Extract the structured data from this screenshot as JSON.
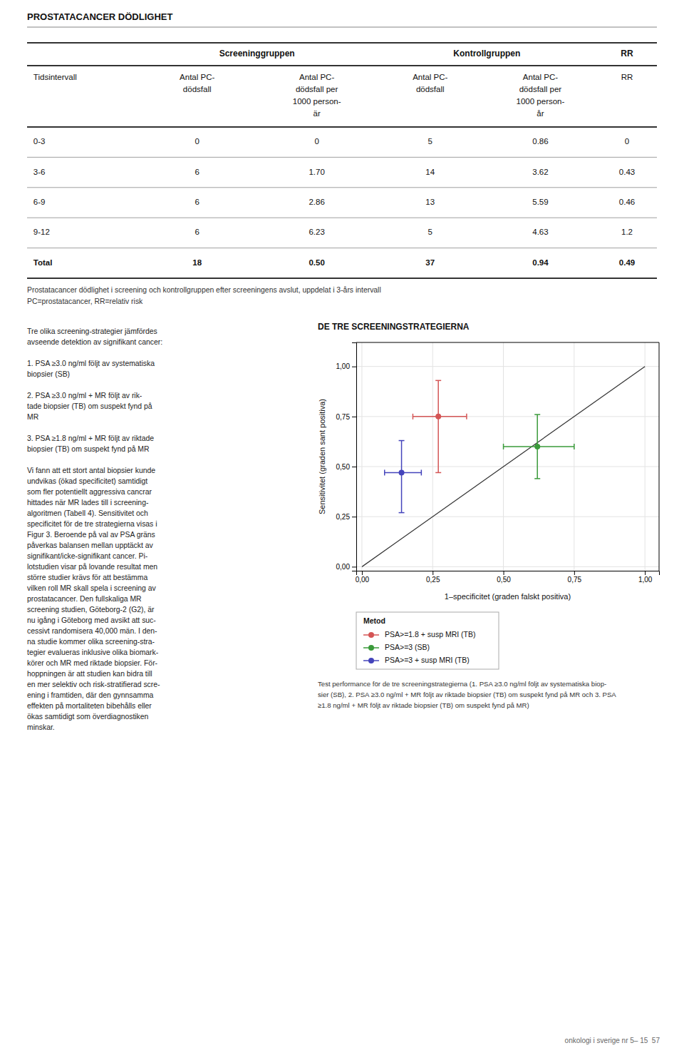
{
  "chart_data": [
    {
      "type": "table",
      "title": "PROSTATACANCER DÖDLIGHET",
      "group_labels": [
        "Screeninggruppen",
        "Kontrollgruppen",
        "RR"
      ],
      "columns": [
        [
          "Tidsintervall"
        ],
        [
          "Antal PC-",
          "dödsfall"
        ],
        [
          "Antal PC-",
          "dödsfall per",
          "1000 person-",
          "är"
        ],
        [
          "Antal PC-",
          "dödsfall"
        ],
        [
          "Antal PC-",
          "dödsfall per",
          "1000 person-",
          "år"
        ],
        [
          "RR"
        ]
      ],
      "rows": [
        [
          "0-3",
          "0",
          "0",
          "5",
          "0.86",
          "0"
        ],
        [
          "3-6",
          "6",
          "1.70",
          "14",
          "3.62",
          "0.43"
        ],
        [
          "6-9",
          "6",
          "2.86",
          "13",
          "5.59",
          "0.46"
        ],
        [
          "9-12",
          "6",
          "6.23",
          "5",
          "4.63",
          "1.2"
        ],
        [
          "Total",
          "18",
          "0.50",
          "37",
          "0.94",
          "0.49"
        ]
      ],
      "caption": [
        "Prostatacancer dödlighet i screening och kontrollgruppen efter screeningens avslut, uppdelat i 3-års intervall",
        "PC=prostatacancer, RR=relativ risk"
      ]
    },
    {
      "type": "scatter",
      "title": "DE TRE SCREENINGSTRATEGIERNA",
      "x_label": "1–specificitet (graden falskt positiva)",
      "y_label": "Sensitivitet (graden sant positiva)",
      "xlim": [
        -0.02,
        1.05
      ],
      "ylim": [
        -0.02,
        1.12
      ],
      "xticks": [
        {
          "value": 0,
          "label": "0,00"
        },
        {
          "value": 0.25,
          "label": "0,25"
        },
        {
          "value": 0.5,
          "label": "0,50"
        },
        {
          "value": 0.75,
          "label": "0,75"
        },
        {
          "value": 1,
          "label": "1,00"
        }
      ],
      "yticks": [
        {
          "value": 0,
          "label": "0,00"
        },
        {
          "value": 0.25,
          "label": "0,25"
        },
        {
          "value": 0.5,
          "label": "0,50"
        },
        {
          "value": 0.75,
          "label": "0,75"
        },
        {
          "value": 1,
          "label": "1,00"
        }
      ],
      "grid": true,
      "legend": "bottom",
      "legend_title": "Metod",
      "reference_line": {
        "x": [
          0,
          1
        ],
        "y": [
          0,
          1
        ]
      },
      "series": [
        {
          "name": "PSA>=1.8 + susp MRI (TB)",
          "color": "#d45555",
          "x": [
            0.27
          ],
          "values": [
            0.75
          ],
          "x_low": [
            0.18
          ],
          "x_high": [
            0.37
          ],
          "y_low": [
            0.47
          ],
          "y_high": [
            0.93
          ]
        },
        {
          "name": "PSA>=3 (SB)",
          "color": "#3a9a3a",
          "x": [
            0.62
          ],
          "values": [
            0.6
          ],
          "x_low": [
            0.5
          ],
          "x_high": [
            0.75
          ],
          "y_low": [
            0.44
          ],
          "y_high": [
            0.76
          ]
        },
        {
          "name": "PSA>=3 + susp MRI (TB)",
          "color": "#4444bb",
          "x": [
            0.14
          ],
          "values": [
            0.47
          ],
          "x_low": [
            0.08
          ],
          "x_high": [
            0.21
          ],
          "y_low": [
            0.27
          ],
          "y_high": [
            0.63
          ]
        }
      ],
      "caption": [
        "Test performance för de tre screeningstrategierna (1. PSA ≥3.0 ng/ml följt av systematiska biop-",
        "sier (SB), 2. PSA ≥3.0 ng/ml + MR följt av riktade biopsier (TB) om suspekt fynd på MR och 3. PSA",
        "≥1.8 ng/ml + MR följt av riktade biopsier (TB) om suspekt fynd på MR)"
      ]
    }
  ],
  "page": {
    "text": [
      [
        "Tre olika screening-strategier jämfördes",
        "avseende detektion av signifikant cancer:"
      ],
      [
        "1. PSA ≥3.0 ng/ml följt av systematiska",
        "biopsier (SB)"
      ],
      [
        "2. PSA ≥3.0 ng/ml + MR följt av rik-",
        "tade biopsier (TB) om suspekt fynd på",
        "MR"
      ],
      [
        "3. PSA ≥1.8 ng/ml + MR följt av riktade",
        "biopsier (TB) om suspekt fynd på MR"
      ],
      [
        "Vi fann att ett stort antal biopsier kunde",
        "undvikas (ökad specificitet) samtidigt",
        "som fler potentiellt aggressiva cancrar",
        "hittades när MR lades till i screening-",
        "algoritmen (Tabell 4). Sensitivitet och",
        "specificitet för de tre strategierna visas i",
        "Figur 3. Beroende på val av PSA gräns",
        "påverkas balansen mellan upptäckt av",
        "signifikant/icke-signifikant cancer. Pi-",
        "lotstudien visar på lovande resultat men",
        "större studier krävs för att bestämma",
        "vilken roll MR skall spela i screening av",
        "prostatacancer. Den fullskaliga MR",
        "screening studien, Göteborg-2 (G2), är",
        "nu igång i Göteborg med avsikt att suc-",
        "cessivt randomisera 40,000 män. I den-",
        "na studie kommer olika screening-stra-",
        "tegier evalueras inklusive olika biomark-",
        "körer och MR med riktade biopsier. För-",
        "hoppningen är att studien kan bidra till",
        "en mer selektiv och risk-stratifierad scre-",
        "ening i framtiden, där den gynnsamma",
        "effekten på mortaliteten bibehålls eller",
        "ökas samtidigt som överdiagnostiken",
        "minskar."
      ]
    ],
    "footer": "onkologi i sverige nr 5– 15  57"
  }
}
